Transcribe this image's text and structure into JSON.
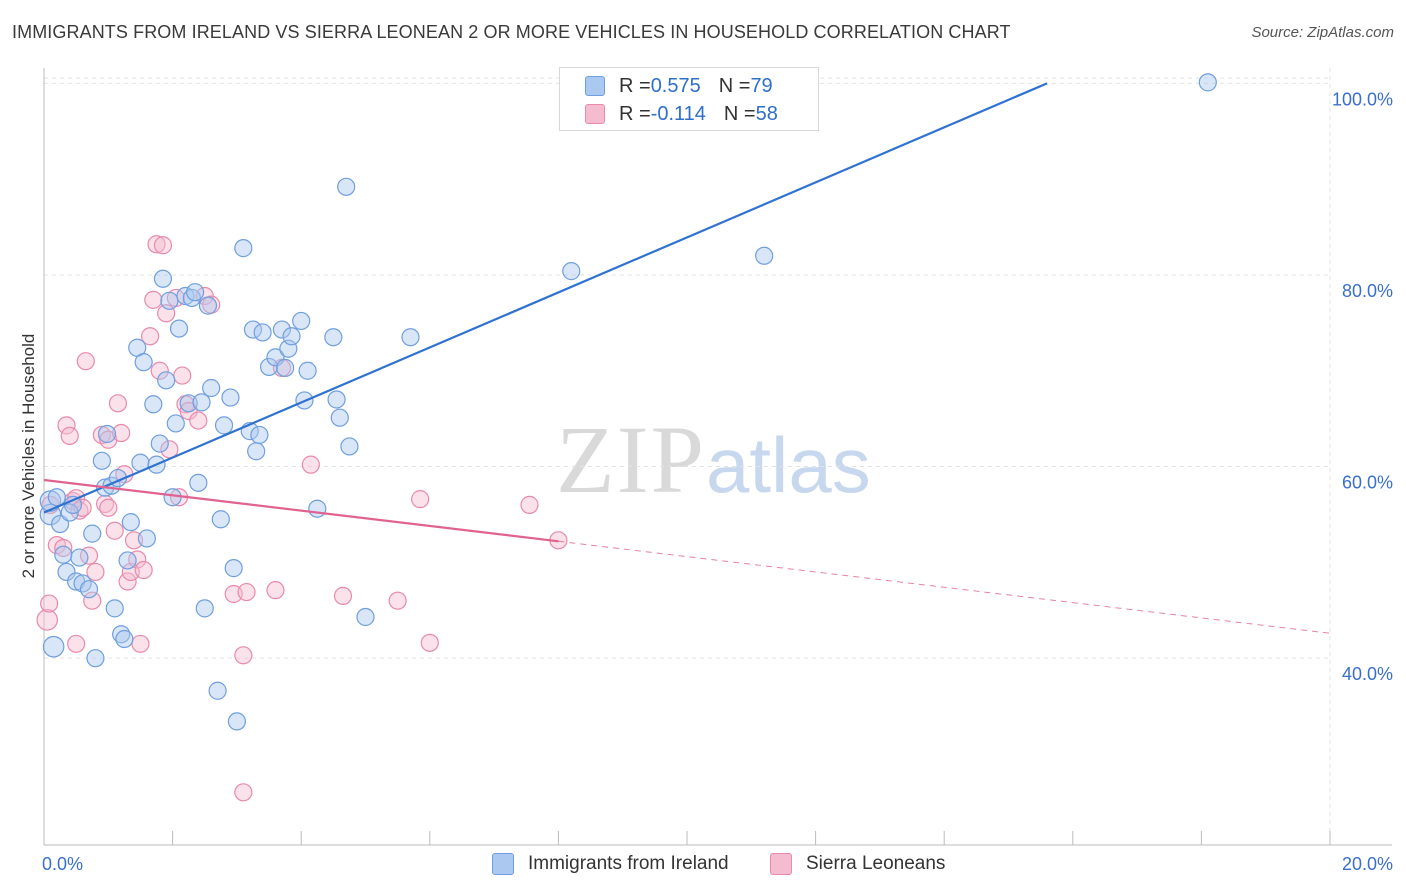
{
  "title": "IMMIGRANTS FROM IRELAND VS SIERRA LEONEAN 2 OR MORE VEHICLES IN HOUSEHOLD CORRELATION CHART",
  "source": "Source: ZipAtlas.com",
  "watermark": {
    "zip": "ZIP",
    "atlas": "atlas"
  },
  "legend": [
    {
      "r_label": "R = ",
      "r_value": "0.575",
      "n_label": "N = ",
      "n_value": "79"
    },
    {
      "r_label": "R = ",
      "r_value": "-0.114",
      "n_label": "N = ",
      "n_value": "58"
    }
  ],
  "colors": {
    "blue_fill": "#aac8f0",
    "blue_stroke": "#6f9fdf",
    "blue_line": "#2f72d0",
    "pink_fill": "#f5bcd0",
    "pink_stroke": "#e98aab",
    "pink_line": "#e0638f",
    "axis_label": "#3a6fc9",
    "grid": "#e3e3e3"
  },
  "chart_data": {
    "type": "scatter",
    "title": "IMMIGRANTS FROM IRELAND VS SIERRA LEONEAN 2 OR MORE VEHICLES IN HOUSEHOLD CORRELATION CHART",
    "xlabel": "",
    "ylabel": "2 or more Vehicles in Household",
    "xlim": [
      0,
      20
    ],
    "ylim": [
      20.5,
      101.6
    ],
    "x_tick_labels": [
      {
        "value": 0,
        "label": "0.0%"
      },
      {
        "value": 20,
        "label": "20.0%"
      }
    ],
    "y_tick_labels": [
      {
        "value": 100,
        "label": "100.0%"
      },
      {
        "value": 80,
        "label": "80.0%"
      },
      {
        "value": 60,
        "label": "60.0%"
      },
      {
        "value": 40,
        "label": "40.0%"
      }
    ],
    "grid": true,
    "series": [
      {
        "name": "Immigrants from Ireland",
        "color": "#aac8f0",
        "trend": {
          "x": [
            0.0,
            15.6
          ],
          "y": [
            55.2,
            100.0
          ]
        },
        "points": [
          [
            0.1,
            55.0,
            1.2
          ],
          [
            0.1,
            56.4,
            1.2
          ],
          [
            0.15,
            41.2,
            1.2
          ],
          [
            0.2,
            56.8,
            1
          ],
          [
            0.25,
            54.0,
            1
          ],
          [
            0.3,
            50.8,
            1
          ],
          [
            0.35,
            49.0,
            1
          ],
          [
            0.4,
            55.2,
            1
          ],
          [
            0.45,
            56.0,
            1
          ],
          [
            0.5,
            48.0,
            1
          ],
          [
            0.55,
            50.5,
            1
          ],
          [
            0.6,
            47.8,
            1
          ],
          [
            0.7,
            47.2,
            1
          ],
          [
            0.75,
            53.0,
            1
          ],
          [
            0.8,
            40.0,
            1
          ],
          [
            0.9,
            60.6,
            1
          ],
          [
            0.95,
            57.8,
            1
          ],
          [
            0.98,
            63.4,
            1
          ],
          [
            1.05,
            58.0,
            1
          ],
          [
            1.1,
            45.2,
            1
          ],
          [
            1.15,
            58.8,
            1
          ],
          [
            1.2,
            42.5,
            1
          ],
          [
            1.25,
            42.0,
            1
          ],
          [
            1.3,
            50.2,
            1
          ],
          [
            1.35,
            54.2,
            1
          ],
          [
            1.45,
            72.4,
            1
          ],
          [
            1.5,
            60.4,
            1
          ],
          [
            1.55,
            70.9,
            1
          ],
          [
            1.6,
            52.5,
            1
          ],
          [
            1.7,
            66.5,
            1
          ],
          [
            1.75,
            60.2,
            1
          ],
          [
            1.8,
            62.4,
            1
          ],
          [
            1.85,
            79.6,
            1
          ],
          [
            1.9,
            69.0,
            1
          ],
          [
            1.95,
            77.3,
            1
          ],
          [
            2.0,
            56.8,
            1
          ],
          [
            2.05,
            64.5,
            1
          ],
          [
            2.1,
            74.4,
            1
          ],
          [
            2.2,
            77.8,
            1
          ],
          [
            2.25,
            66.6,
            1
          ],
          [
            2.3,
            77.6,
            1
          ],
          [
            2.35,
            78.2,
            1
          ],
          [
            2.4,
            58.3,
            1
          ],
          [
            2.45,
            66.7,
            1
          ],
          [
            2.5,
            45.2,
            1
          ],
          [
            2.55,
            76.8,
            1
          ],
          [
            2.6,
            68.2,
            1
          ],
          [
            2.7,
            36.6,
            1
          ],
          [
            2.75,
            54.5,
            1
          ],
          [
            2.8,
            64.3,
            1
          ],
          [
            2.9,
            67.2,
            1
          ],
          [
            2.95,
            49.4,
            1
          ],
          [
            3.0,
            33.4,
            1
          ],
          [
            3.1,
            82.8,
            1
          ],
          [
            3.2,
            63.7,
            1
          ],
          [
            3.25,
            74.3,
            1
          ],
          [
            3.3,
            61.6,
            1
          ],
          [
            3.35,
            63.3,
            1
          ],
          [
            3.4,
            74.0,
            1
          ],
          [
            3.5,
            70.4,
            1
          ],
          [
            3.6,
            71.4,
            1
          ],
          [
            3.7,
            74.3,
            1
          ],
          [
            3.75,
            70.3,
            1
          ],
          [
            3.8,
            72.3,
            1
          ],
          [
            3.85,
            73.6,
            1
          ],
          [
            4.0,
            75.2,
            1
          ],
          [
            4.05,
            66.9,
            1
          ],
          [
            4.1,
            70.0,
            1
          ],
          [
            4.25,
            55.6,
            1
          ],
          [
            4.5,
            73.5,
            1
          ],
          [
            4.55,
            67.0,
            1
          ],
          [
            4.6,
            65.1,
            1
          ],
          [
            4.7,
            89.2,
            1
          ],
          [
            4.75,
            62.1,
            1
          ],
          [
            5.0,
            44.3,
            1
          ],
          [
            5.7,
            73.5,
            1
          ],
          [
            8.2,
            80.4,
            1
          ],
          [
            11.2,
            82.0,
            1
          ],
          [
            18.1,
            100.1,
            1
          ]
        ]
      },
      {
        "name": "Sierra Leoneans",
        "color": "#f5bcd0",
        "trend": {
          "x": [
            0.0,
            8.0
          ],
          "y": [
            58.6,
            52.2
          ]
        },
        "trend_extension": {
          "x": [
            8.0,
            20.0
          ],
          "y": [
            52.2,
            42.6
          ]
        },
        "points": [
          [
            0.05,
            44.0,
            1.2
          ],
          [
            0.08,
            45.7,
            1
          ],
          [
            0.1,
            56.0,
            1
          ],
          [
            0.2,
            51.8,
            1
          ],
          [
            0.3,
            51.5,
            1
          ],
          [
            0.35,
            64.3,
            1
          ],
          [
            0.4,
            63.2,
            1
          ],
          [
            0.45,
            56.4,
            1
          ],
          [
            0.5,
            41.5,
            1
          ],
          [
            0.5,
            56.7,
            1
          ],
          [
            0.55,
            55.4,
            1
          ],
          [
            0.6,
            55.7,
            1
          ],
          [
            0.65,
            71.0,
            1
          ],
          [
            0.7,
            50.7,
            1
          ],
          [
            0.75,
            46.0,
            1
          ],
          [
            0.8,
            49.0,
            1
          ],
          [
            0.9,
            63.3,
            1
          ],
          [
            0.95,
            56.1,
            1
          ],
          [
            1.0,
            55.7,
            1
          ],
          [
            1.0,
            62.8,
            1
          ],
          [
            1.1,
            53.3,
            1
          ],
          [
            1.15,
            66.6,
            1
          ],
          [
            1.2,
            63.5,
            1
          ],
          [
            1.25,
            59.2,
            1
          ],
          [
            1.3,
            48.0,
            1
          ],
          [
            1.35,
            49.0,
            1
          ],
          [
            1.4,
            52.3,
            1
          ],
          [
            1.45,
            50.3,
            1
          ],
          [
            1.5,
            41.5,
            1
          ],
          [
            1.55,
            49.2,
            1
          ],
          [
            1.65,
            73.6,
            1
          ],
          [
            1.7,
            77.4,
            1
          ],
          [
            1.75,
            83.2,
            1
          ],
          [
            1.8,
            70.0,
            1
          ],
          [
            1.85,
            83.1,
            1
          ],
          [
            1.9,
            76.0,
            1
          ],
          [
            1.95,
            61.8,
            1
          ],
          [
            2.05,
            77.6,
            1
          ],
          [
            2.1,
            56.8,
            1
          ],
          [
            2.15,
            69.5,
            1
          ],
          [
            2.2,
            66.5,
            1
          ],
          [
            2.25,
            65.8,
            1
          ],
          [
            2.4,
            64.8,
            1
          ],
          [
            2.5,
            77.8,
            1
          ],
          [
            2.6,
            76.9,
            1
          ],
          [
            2.95,
            46.7,
            1
          ],
          [
            3.1,
            40.3,
            1
          ],
          [
            3.15,
            46.9,
            1
          ],
          [
            3.1,
            26.0,
            1
          ],
          [
            3.6,
            47.1,
            1
          ],
          [
            3.7,
            70.3,
            1
          ],
          [
            4.15,
            60.2,
            1
          ],
          [
            4.65,
            46.5,
            1
          ],
          [
            5.5,
            46.0,
            1
          ],
          [
            5.85,
            56.6,
            1
          ],
          [
            6.0,
            41.6,
            1
          ],
          [
            7.55,
            56.0,
            1
          ],
          [
            8.0,
            52.3,
            1
          ]
        ]
      }
    ]
  },
  "bottom_legend": [
    "Immigrants from Ireland",
    "Sierra Leoneans"
  ]
}
